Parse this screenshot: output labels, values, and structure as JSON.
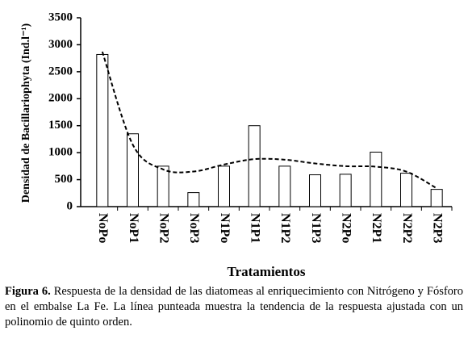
{
  "chart_data": {
    "type": "bar",
    "y_label": "Densidad de Bacillariophyta (Ind.l⁻¹)",
    "x_label": "Tratamientos",
    "categories": [
      "NoPo",
      "NoP1",
      "NoP2",
      "NoP3",
      "N1Po",
      "N1P1",
      "N1P2",
      "N1P3",
      "N2Po",
      "N2P1",
      "N2P2",
      "N2P3"
    ],
    "values": [
      2820,
      1350,
      750,
      260,
      750,
      1500,
      750,
      590,
      600,
      1010,
      620,
      320
    ],
    "trend_values": [
      2870,
      1150,
      690,
      650,
      780,
      880,
      870,
      800,
      750,
      740,
      650,
      340
    ],
    "color": "#ffffff",
    "trend_color": "#000000",
    "ylim": [
      0,
      3500
    ],
    "yticks": [
      0,
      500,
      1000,
      1500,
      2000,
      2500,
      3000,
      3500
    ]
  },
  "caption": {
    "label": "Figura 6.",
    "text": "Respuesta de la densidad de las diatomeas al enriquecimiento con Nitrógeno y Fósforo en el embalse La Fe. La línea punteada muestra la tendencia de la respuesta ajustada con un polinomio de quinto orden."
  }
}
